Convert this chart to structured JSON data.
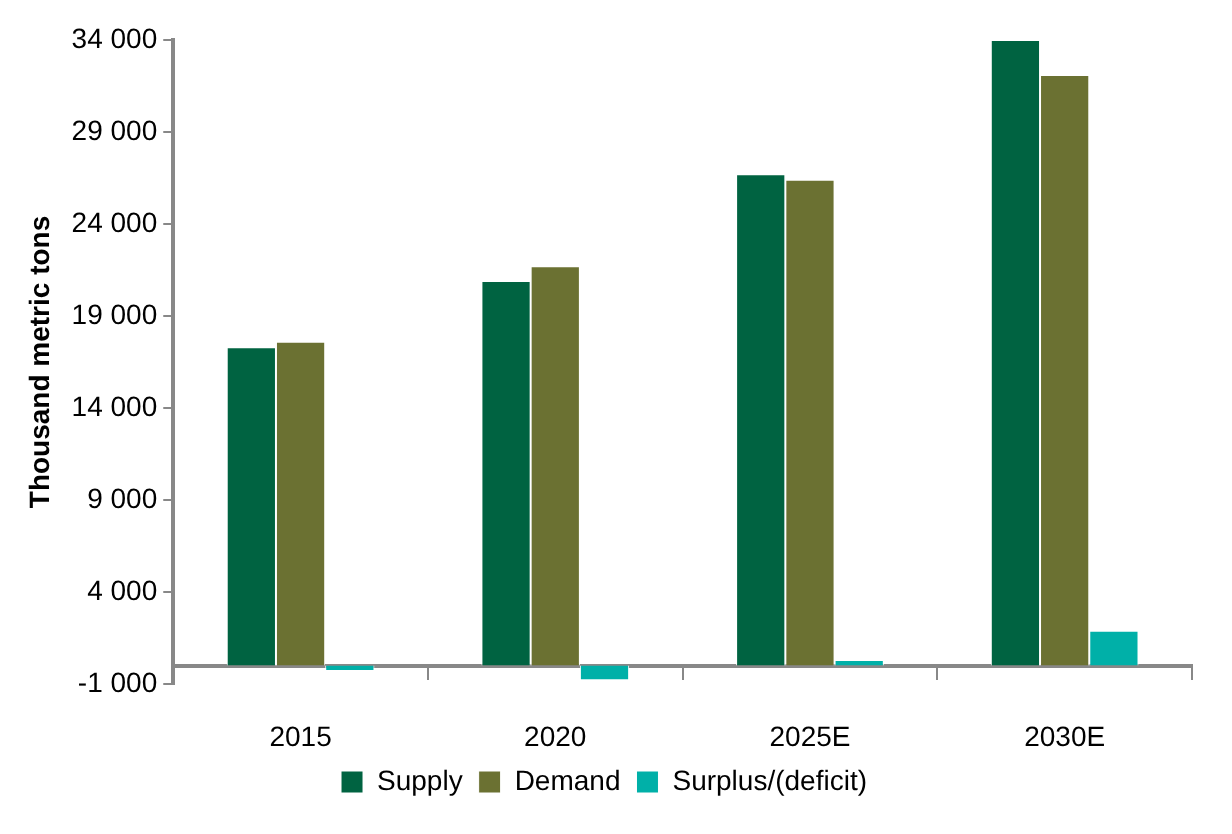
{
  "chart_data": {
    "type": "bar",
    "ylabel": "Thousand metric tons",
    "categories": [
      "2015",
      "2020",
      "2025E",
      "2030E"
    ],
    "series": [
      {
        "name": "Supply",
        "color": "#006341",
        "values": [
          17300,
          20900,
          26700,
          34000
        ]
      },
      {
        "name": "Demand",
        "color": "#6b7132",
        "values": [
          17600,
          21700,
          26400,
          32100
        ]
      },
      {
        "name": "Surplus/(deficit)",
        "color": "#00b0a8",
        "values": [
          -300,
          -800,
          300,
          1900
        ]
      }
    ],
    "ylim": [
      -1000,
      34000
    ],
    "yticks": [
      {
        "value": -1000,
        "label": "-1 000"
      },
      {
        "value": 4000,
        "label": "4 000"
      },
      {
        "value": 9000,
        "label": "9 000"
      },
      {
        "value": 14000,
        "label": "14 000"
      },
      {
        "value": 19000,
        "label": "19 000"
      },
      {
        "value": 24000,
        "label": "24 000"
      },
      {
        "value": 29000,
        "label": "29 000"
      },
      {
        "value": 34000,
        "label": "34 000"
      }
    ],
    "grid": false,
    "legend": "bottom"
  }
}
